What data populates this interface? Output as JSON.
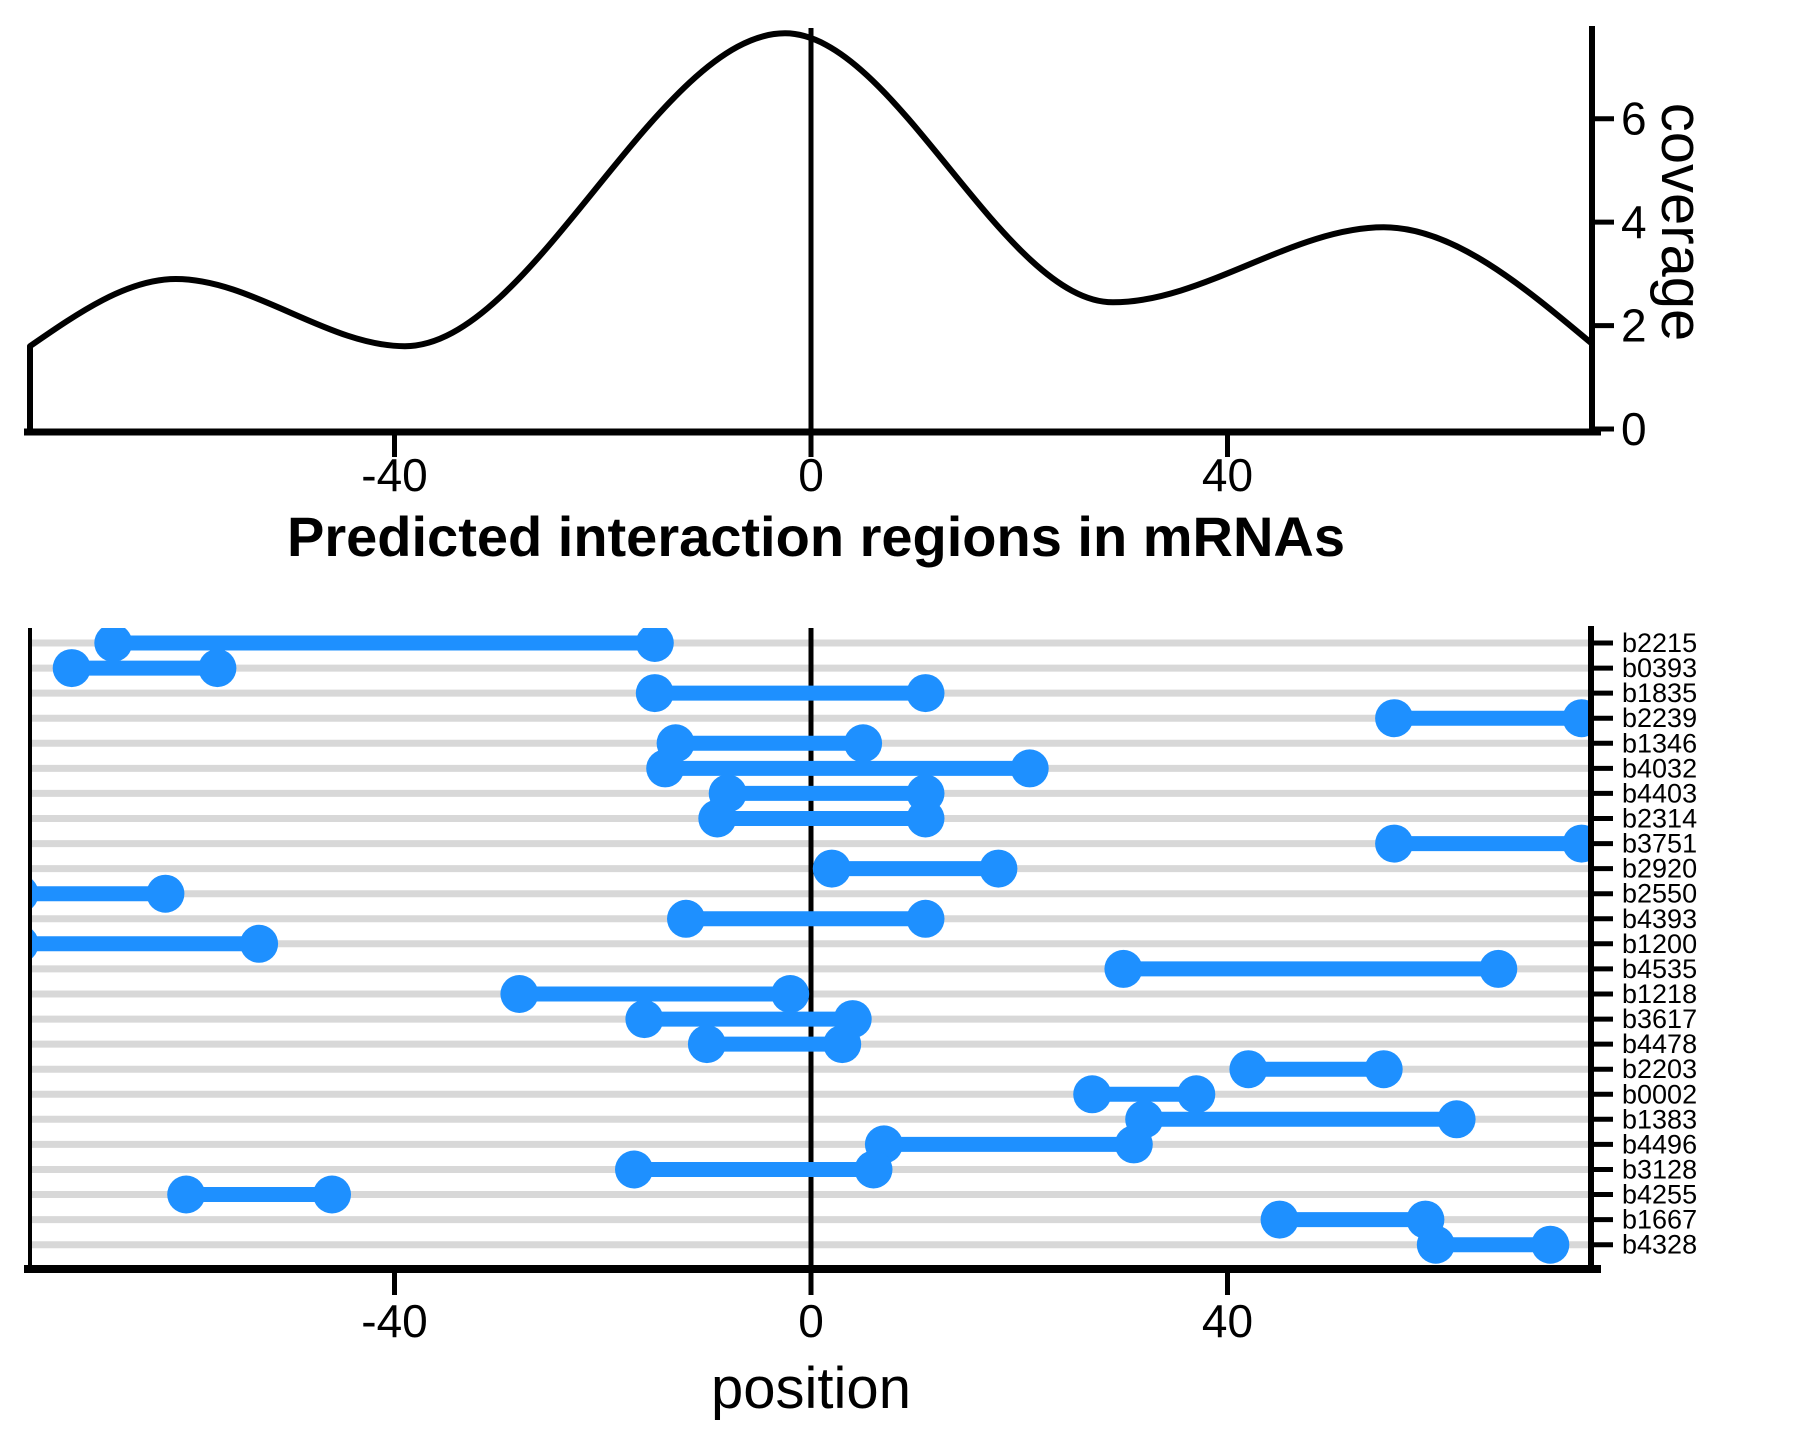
{
  "figure": {
    "title": "Predicted interaction regions in mRNAs",
    "colors": {
      "segment_blue": "#1E90FF",
      "gridline_gray": "#D8D8D8",
      "axis_black": "#000000",
      "background": "#FFFFFF"
    }
  },
  "chart_data": [
    {
      "type": "area",
      "title": "",
      "xlabel": "",
      "ylabel": "coverage",
      "xlim": [
        -75,
        75
      ],
      "ylim": [
        0,
        7.8
      ],
      "x_ticks": [
        -40,
        0,
        40
      ],
      "y_ticks": [
        0,
        2,
        4,
        6
      ],
      "y_axis_side": "right",
      "grid": false,
      "vline_x": 0,
      "curve_points": [
        [
          -75,
          1.6
        ],
        [
          -61,
          2.9
        ],
        [
          -39,
          1.6
        ],
        [
          -2.5,
          7.65
        ],
        [
          29,
          2.45
        ],
        [
          55,
          3.9
        ],
        [
          75,
          1.65
        ]
      ]
    },
    {
      "type": "segment",
      "title": "Predicted interaction regions in mRNAs",
      "xlabel": "position",
      "ylabel": "",
      "xlim": [
        -75,
        75
      ],
      "x_ticks": [
        -40,
        0,
        40
      ],
      "y_axis_side": "right",
      "grid": true,
      "vline_x": 0,
      "rows": [
        {
          "label": "b2215",
          "start": -67,
          "end": -15
        },
        {
          "label": "b0393",
          "start": -71,
          "end": -57
        },
        {
          "label": "b1835",
          "start": -15,
          "end": 11
        },
        {
          "label": "b2239",
          "start": 56,
          "end": 74
        },
        {
          "label": "b1346",
          "start": -13,
          "end": 5
        },
        {
          "label": "b4032",
          "start": -14,
          "end": 21
        },
        {
          "label": "b4403",
          "start": -8,
          "end": 11
        },
        {
          "label": "b2314",
          "start": -9,
          "end": 11
        },
        {
          "label": "b3751",
          "start": 56,
          "end": 74
        },
        {
          "label": "b2920",
          "start": 2,
          "end": 18
        },
        {
          "label": "b2550",
          "start": -76,
          "end": -62
        },
        {
          "label": "b4393",
          "start": -12,
          "end": 11
        },
        {
          "label": "b1200",
          "start": -76,
          "end": -53
        },
        {
          "label": "b4535",
          "start": 30,
          "end": 66
        },
        {
          "label": "b1218",
          "start": -28,
          "end": -2
        },
        {
          "label": "b3617",
          "start": -16,
          "end": 4
        },
        {
          "label": "b4478",
          "start": -10,
          "end": 3
        },
        {
          "label": "b2203",
          "start": 42,
          "end": 55
        },
        {
          "label": "b0002",
          "start": 27,
          "end": 37
        },
        {
          "label": "b1383",
          "start": 32,
          "end": 62
        },
        {
          "label": "b4496",
          "start": 7,
          "end": 31
        },
        {
          "label": "b3128",
          "start": -17,
          "end": 6
        },
        {
          "label": "b4255",
          "start": -60,
          "end": -46
        },
        {
          "label": "b1667",
          "start": 45,
          "end": 59
        },
        {
          "label": "b4328",
          "start": 60,
          "end": 71
        }
      ]
    }
  ]
}
